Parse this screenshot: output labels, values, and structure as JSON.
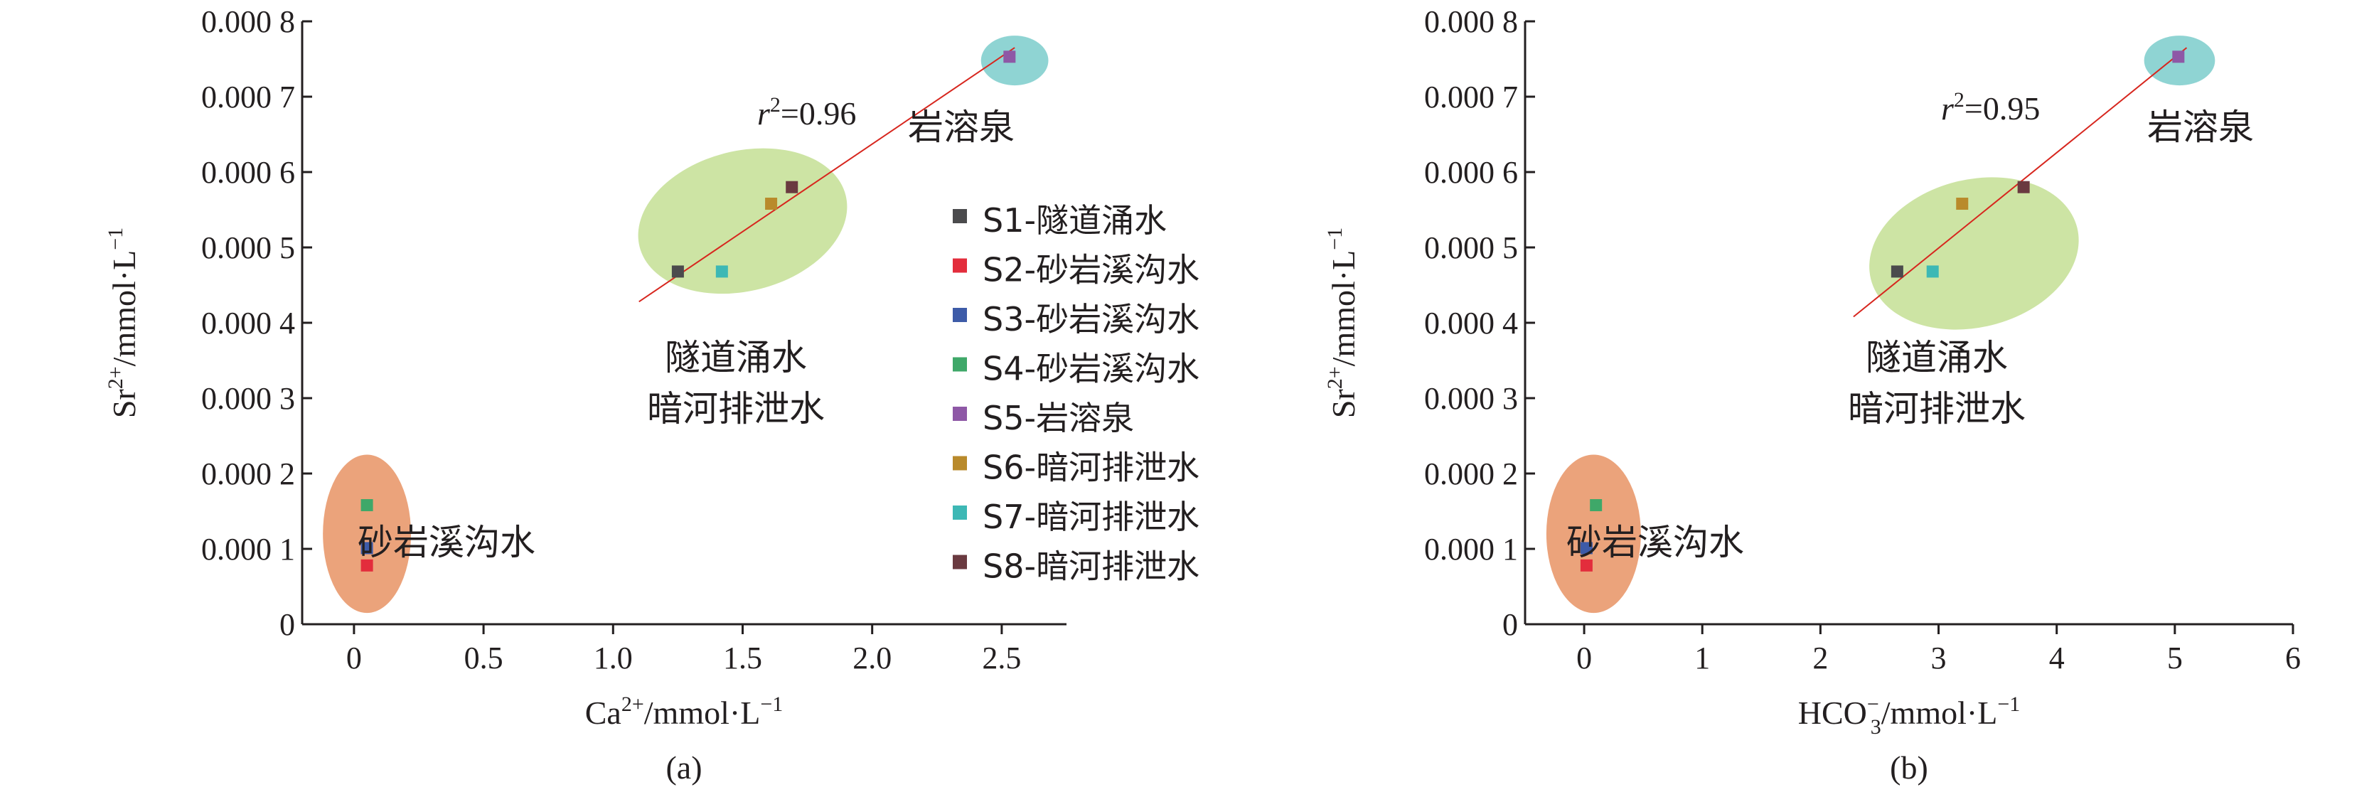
{
  "chart_data": [
    {
      "type": "scatter",
      "panel_label": "(a)",
      "xlabel": "Ca",
      "xlabel_sup": "2+",
      "xlabel_unit": "/mmol·L",
      "xlabel_unit_sup": "−1",
      "ylabel": "Sr",
      "ylabel_sup": "2+",
      "ylabel_unit": "/mmol·L",
      "ylabel_unit_sup": "−1",
      "xlim": [
        -0.2,
        2.75
      ],
      "ylim": [
        0,
        0.0008
      ],
      "x_ticks": [
        0,
        0.5,
        1.0,
        1.5,
        2.0,
        2.5
      ],
      "x_tick_labels": [
        "0",
        "0.5",
        "1.0",
        "1.5",
        "2.0",
        "2.5"
      ],
      "y_ticks": [
        0,
        0.0001,
        0.0002,
        0.0003,
        0.0004,
        0.0005,
        0.0006,
        0.0007,
        0.0008
      ],
      "y_tick_labels": [
        "0",
        "0.000 1",
        "0.000 2",
        "0.000 3",
        "0.000 4",
        "0.000 5",
        "0.000 6",
        "0.000 7",
        "0.000 8"
      ],
      "grid": false,
      "points": [
        {
          "id": "S1",
          "x": 1.25,
          "y": 0.000468
        },
        {
          "id": "S2",
          "x": 0.05,
          "y": 7.8e-05
        },
        {
          "id": "S3",
          "x": 0.05,
          "y": 0.000101
        },
        {
          "id": "S4",
          "x": 0.05,
          "y": 0.000158
        },
        {
          "id": "S5",
          "x": 2.53,
          "y": 0.000753
        },
        {
          "id": "S6",
          "x": 1.61,
          "y": 0.000558
        },
        {
          "id": "S7",
          "x": 1.42,
          "y": 0.000468
        },
        {
          "id": "S8",
          "x": 1.69,
          "y": 0.00058
        }
      ],
      "trendline": {
        "x": [
          1.1,
          2.55
        ],
        "y": [
          0.000428,
          0.000765
        ],
        "color": "#d7261e"
      },
      "r_squared_label": {
        "r": "r",
        "sup": "2",
        "value": "=0.96"
      },
      "groups": [
        {
          "label_lines": [
            "岩溶泉"
          ],
          "color": "#8fd4d3",
          "cx": 2.55,
          "cy": 0.000748,
          "rx": 0.13,
          "ry": 3.3e-05
        },
        {
          "label_lines": [
            "隧道涌水",
            "暗河排泄水"
          ],
          "color": "#cde4a4",
          "cx": 1.5,
          "cy": 0.000535,
          "rx": 0.41,
          "ry": 9.3e-05,
          "rotate": -14
        },
        {
          "label_lines": [
            "砂岩溪沟水"
          ],
          "color": "#eba37b",
          "cx": 0.05,
          "cy": 0.00012,
          "rx": 0.17,
          "ry": 0.000105
        }
      ],
      "legend": {
        "placement": "center-right",
        "entries": [
          {
            "id": "S1",
            "label": "S1-隧道涌水",
            "color": "#4b4b4d"
          },
          {
            "id": "S2",
            "label": "S2-砂岩溪沟水",
            "color": "#e32d3c"
          },
          {
            "id": "S3",
            "label": "S3-砂岩溪沟水",
            "color": "#3d5ba8"
          },
          {
            "id": "S4",
            "label": "S4-砂岩溪沟水",
            "color": "#3fa869"
          },
          {
            "id": "S5",
            "label": "S5-岩溶泉",
            "color": "#8e58a6"
          },
          {
            "id": "S6",
            "label": "S6-暗河排泄水",
            "color": "#b98a2b"
          },
          {
            "id": "S7",
            "label": "S7-暗河排泄水",
            "color": "#3db8b5"
          },
          {
            "id": "S8",
            "label": "S8-暗河排泄水",
            "color": "#6a3a40"
          }
        ]
      }
    },
    {
      "type": "scatter",
      "panel_label": "(b)",
      "xlabel": "HCO",
      "xlabel_sub": "3",
      "xlabel_sup": "−",
      "xlabel_unit": "/mmol·L",
      "xlabel_unit_sup": "−1",
      "ylabel": "Sr",
      "ylabel_sup": "2+",
      "ylabel_unit": "/mmol·L",
      "ylabel_unit_sup": "−1",
      "xlim": [
        -0.5,
        6.0
      ],
      "ylim": [
        0,
        0.0008
      ],
      "x_ticks": [
        0,
        1,
        2,
        3,
        4,
        5,
        6
      ],
      "x_tick_labels": [
        "0",
        "1",
        "2",
        "3",
        "4",
        "5",
        "6"
      ],
      "y_ticks": [
        0,
        0.0001,
        0.0002,
        0.0003,
        0.0004,
        0.0005,
        0.0006,
        0.0007,
        0.0008
      ],
      "y_tick_labels": [
        "0",
        "0.000 1",
        "0.000 2",
        "0.000 3",
        "0.000 4",
        "0.000 5",
        "0.000 6",
        "0.000 7",
        "0.000 8"
      ],
      "grid": false,
      "points": [
        {
          "id": "S1",
          "x": 2.65,
          "y": 0.000468
        },
        {
          "id": "S2",
          "x": 0.02,
          "y": 7.8e-05
        },
        {
          "id": "S3",
          "x": 0.02,
          "y": 0.000101
        },
        {
          "id": "S4",
          "x": 0.1,
          "y": 0.000158
        },
        {
          "id": "S5",
          "x": 5.03,
          "y": 0.000753
        },
        {
          "id": "S6",
          "x": 3.2,
          "y": 0.000558
        },
        {
          "id": "S7",
          "x": 2.95,
          "y": 0.000468
        },
        {
          "id": "S8",
          "x": 3.72,
          "y": 0.00058
        }
      ],
      "trendline": {
        "x": [
          2.28,
          5.1
        ],
        "y": [
          0.000408,
          0.000765
        ],
        "color": "#d7261e"
      },
      "r_squared_label": {
        "r": "r",
        "sup": "2",
        "value": "=0.95"
      },
      "groups": [
        {
          "label_lines": [
            "岩溶泉"
          ],
          "color": "#8fd4d3",
          "cx": 5.04,
          "cy": 0.000748,
          "rx": 0.3,
          "ry": 3.3e-05
        },
        {
          "label_lines": [
            "隧道涌水",
            "暗河排泄水"
          ],
          "color": "#cde4a4",
          "cx": 3.3,
          "cy": 0.000492,
          "rx": 0.9,
          "ry": 9.8e-05,
          "rotate": -14
        },
        {
          "label_lines": [
            "砂岩溪沟水"
          ],
          "color": "#eba37b",
          "cx": 0.08,
          "cy": 0.00012,
          "rx": 0.4,
          "ry": 0.000105
        }
      ]
    }
  ]
}
